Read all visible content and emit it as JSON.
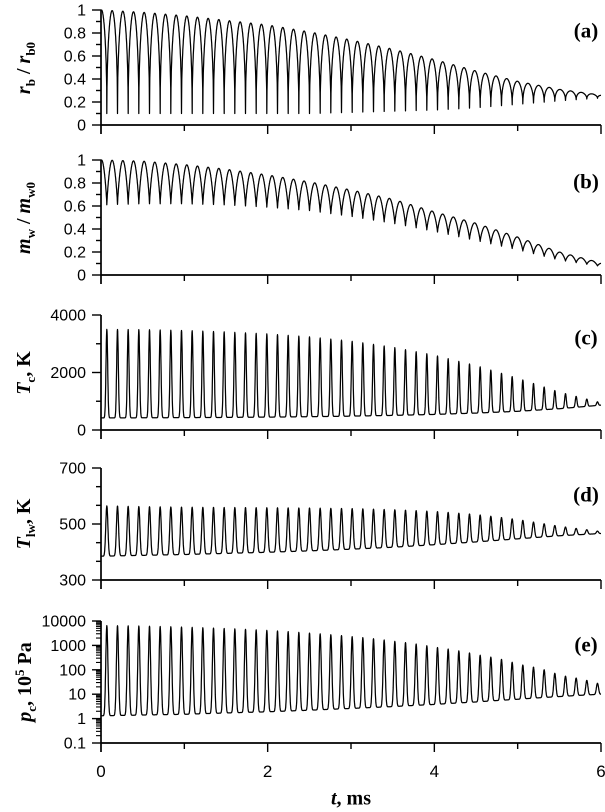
{
  "figure": {
    "background": "#ffffff",
    "line_color": "#000000",
    "axis_color": "#000000"
  },
  "x_axis": {
    "title_parts": [
      {
        "text": "t",
        "fmt": "i"
      },
      {
        "text": ", ms",
        "fmt": "n"
      }
    ],
    "min": 0,
    "max": 6,
    "major_ticks": [
      0,
      2,
      4,
      6
    ],
    "minor_ticks": [
      1,
      3,
      5
    ],
    "tick_labels": [
      "0",
      "2",
      "4",
      "6"
    ]
  },
  "oscillation": {
    "period_ms": 0.128,
    "samples_per_cycle": 64,
    "event_phase": 0.546875,
    "envelope_t": [
      0,
      0.5,
      1,
      1.5,
      2,
      2.5,
      3,
      3.5,
      4,
      4.5,
      5,
      5.5,
      6
    ]
  },
  "chart_data": [
    {
      "type": "line",
      "panel": "a",
      "letter": "(a)",
      "ylabel_parts": [
        {
          "text": "r",
          "fmt": "i"
        },
        {
          "text": "b",
          "fmt": "sub"
        },
        {
          "text": " / ",
          "fmt": "n"
        },
        {
          "text": "r",
          "fmt": "i"
        },
        {
          "text": "b0",
          "fmt": "sub"
        }
      ],
      "y_axis": {
        "scale": "linear",
        "min": 0,
        "max": 1,
        "major_step": 0.2,
        "minor_per_major": 1,
        "tick_labels": [
          "0",
          "0.2",
          "0.4",
          "0.6",
          "0.8",
          "1"
        ]
      },
      "waveform": {
        "kind": "dip",
        "power": 0.45
      },
      "peak_envelope": [
        1.0,
        0.98,
        0.95,
        0.91,
        0.87,
        0.81,
        0.74,
        0.66,
        0.57,
        0.47,
        0.38,
        0.31,
        0.26
      ],
      "trough_envelope": [
        0.1,
        0.1,
        0.1,
        0.1,
        0.1,
        0.1,
        0.11,
        0.12,
        0.13,
        0.15,
        0.18,
        0.21,
        0.235
      ]
    },
    {
      "type": "line",
      "panel": "b",
      "letter": "(b)",
      "ylabel_parts": [
        {
          "text": "m",
          "fmt": "i"
        },
        {
          "text": "w",
          "fmt": "sub"
        },
        {
          "text": " / ",
          "fmt": "n"
        },
        {
          "text": "m",
          "fmt": "i"
        },
        {
          "text": "w0",
          "fmt": "sub"
        }
      ],
      "y_axis": {
        "scale": "linear",
        "min": 0,
        "max": 1,
        "major_step": 0.2,
        "minor_per_major": 1,
        "tick_labels": [
          "0",
          "0.2",
          "0.4",
          "0.6",
          "0.8",
          "1"
        ]
      },
      "waveform": {
        "kind": "dip",
        "power": 0.8
      },
      "peak_envelope": [
        1.0,
        0.99,
        0.96,
        0.92,
        0.87,
        0.81,
        0.74,
        0.66,
        0.55,
        0.45,
        0.33,
        0.2,
        0.105
      ],
      "trough_envelope": [
        0.61,
        0.62,
        0.62,
        0.61,
        0.59,
        0.56,
        0.51,
        0.45,
        0.38,
        0.3,
        0.22,
        0.13,
        0.075
      ]
    },
    {
      "type": "line",
      "panel": "c",
      "letter": "(c)",
      "ylabel_parts": [
        {
          "text": "T",
          "fmt": "i"
        },
        {
          "text": "c",
          "fmt": "sub"
        },
        {
          "text": ", K",
          "fmt": "n"
        }
      ],
      "y_axis": {
        "scale": "linear",
        "min": 0,
        "max": 4000,
        "major_step": 2000,
        "minor_per_major": 1,
        "tick_labels": [
          "0",
          "2000",
          "4000"
        ]
      },
      "waveform": {
        "kind": "spike",
        "power": 8
      },
      "peak_envelope": [
        3500,
        3490,
        3460,
        3410,
        3340,
        3240,
        3090,
        2880,
        2600,
        2240,
        1800,
        1320,
        950
      ],
      "trough_envelope": [
        420,
        424,
        430,
        438,
        448,
        462,
        482,
        508,
        542,
        588,
        650,
        740,
        865
      ]
    },
    {
      "type": "line",
      "panel": "d",
      "letter": "(d)",
      "ylabel_parts": [
        {
          "text": "T",
          "fmt": "i"
        },
        {
          "text": "lw",
          "fmt": "sub"
        },
        {
          "text": ", K",
          "fmt": "n"
        }
      ],
      "y_axis": {
        "scale": "linear",
        "min": 300,
        "max": 700,
        "major_step": 200,
        "minor_per_major": 2,
        "tick_labels": [
          "300",
          "500",
          "700"
        ]
      },
      "waveform": {
        "kind": "spike",
        "power": 5
      },
      "peak_envelope": [
        565,
        562,
        560,
        559,
        558,
        557,
        555,
        551,
        545,
        534,
        516,
        492,
        473
      ],
      "trough_envelope": [
        385,
        388,
        391,
        395,
        399,
        404,
        410,
        417,
        426,
        436,
        447,
        458,
        466
      ]
    },
    {
      "type": "line",
      "panel": "e",
      "letter": "(e)",
      "ylabel_parts": [
        {
          "text": "p",
          "fmt": "i"
        },
        {
          "text": "c",
          "fmt": "sub"
        },
        {
          "text": ", 10",
          "fmt": "n"
        },
        {
          "text": "5",
          "fmt": "sup"
        },
        {
          "text": " Pa",
          "fmt": "n"
        }
      ],
      "y_axis": {
        "scale": "log",
        "min": 0.1,
        "max": 10000,
        "tick_labels": [
          "0.1",
          "1",
          "10",
          "100",
          "1000",
          "10000"
        ]
      },
      "waveform": {
        "kind": "spike",
        "power": 5
      },
      "peak_envelope": [
        6500,
        6200,
        5600,
        4900,
        4100,
        3200,
        2300,
        1500,
        850,
        420,
        170,
        60,
        25
      ],
      "trough_envelope": [
        1.3,
        1.4,
        1.5,
        1.7,
        1.9,
        2.2,
        2.6,
        3.1,
        3.8,
        4.8,
        6.2,
        8.0,
        10.0
      ]
    }
  ]
}
